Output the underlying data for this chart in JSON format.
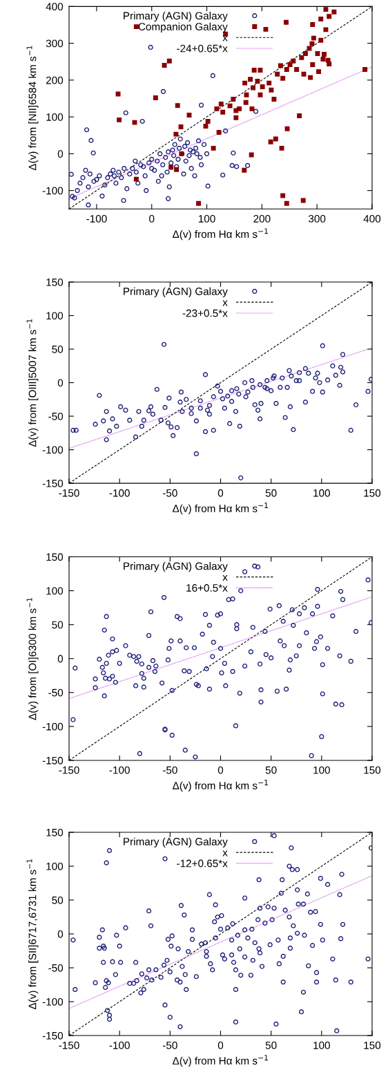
{
  "chart_data": [
    {
      "type": "scatter",
      "xlabel": "Δ(v) from Hα km s$^{−1}$",
      "ylabel": "Δ(v) from [NII]6584 km s$^{−1}$",
      "xlim": [
        -150,
        400
      ],
      "ylim": [
        -150,
        400
      ],
      "xticks": [
        -100,
        0,
        100,
        200,
        300,
        400
      ],
      "yticks": [
        -100,
        0,
        100,
        200,
        300,
        400
      ],
      "legend": "top left",
      "grid": false,
      "series": [
        {
          "name": "Primary (AGN) Galaxy",
          "type": "scatter",
          "marker": "circle",
          "color": "#1f1f7a",
          "x": [
            -146,
            -144,
            -140,
            -135,
            -130,
            -125,
            -120,
            -118,
            -115,
            -115,
            -112,
            -110,
            -106,
            -105,
            -100,
            -95,
            -90,
            -85,
            -80,
            -75,
            -70,
            -68,
            -65,
            -60,
            -55,
            -51,
            -50,
            -47,
            -45,
            -40,
            -35,
            -30,
            -28,
            -25,
            -20,
            -17,
            -15,
            -12,
            -10,
            -5,
            -2,
            0,
            0,
            5,
            10,
            12,
            15,
            18,
            20,
            21,
            25,
            28,
            30,
            30,
            32,
            35,
            38,
            40,
            42,
            45,
            48,
            50,
            52,
            55,
            58,
            60,
            62,
            65,
            68,
            70,
            72,
            75,
            78,
            80,
            82,
            85,
            88,
            90,
            90,
            95,
            100,
            102,
            111,
            129,
            134,
            146,
            148,
            154,
            174,
            189
          ],
          "values": [
            -56,
            -116,
            -120,
            -100,
            -80,
            -65,
            -45,
            65,
            -139,
            -90,
            -55,
            36,
            2,
            -75,
            -70,
            -60,
            -115,
            -85,
            -65,
            -55,
            -45,
            -60,
            -80,
            -50,
            -65,
            -127,
            -40,
            111,
            -95,
            -55,
            -40,
            -20,
            -50,
            -80,
            -30,
            88,
            -35,
            -60,
            -100,
            -25,
            289,
            -40,
            -15,
            -45,
            -20,
            -75,
            0,
            -60,
            -30,
            169,
            -10,
            -50,
            5,
            -122,
            -90,
            -25,
            10,
            -5,
            25,
            -35,
            -15,
            15,
            40,
            0,
            -55,
            20,
            -20,
            30,
            -5,
            10,
            -40,
            5,
            -60,
            15,
            0,
            35,
            -10,
            -30,
            132,
            25,
            0,
            -88,
            212,
            -58,
            62,
            -32,
            2,
            -35,
            -32,
            115
          ]
        },
        {
          "name": "Companion Galaxy",
          "type": "scatter",
          "marker": "square",
          "color": "#8b0000",
          "x": [
            -61,
            -59,
            -31,
            -28,
            -28,
            7,
            23,
            32,
            35,
            44,
            45,
            47,
            53,
            54,
            68,
            85,
            98,
            102,
            112,
            118,
            122,
            126,
            129,
            134,
            142,
            148,
            153,
            153,
            159,
            168,
            169,
            171,
            172,
            179,
            181,
            182,
            184,
            186,
            192,
            197,
            197,
            201,
            207,
            213,
            216,
            217,
            222,
            225,
            228,
            234,
            236,
            238,
            238,
            244,
            245,
            245,
            246,
            251,
            257,
            263,
            268,
            272,
            275,
            276,
            279,
            286,
            288,
            291,
            292,
            292,
            294,
            301,
            303,
            307,
            307,
            311,
            313,
            316,
            316,
            320,
            322,
            322,
            331,
            387
          ],
          "values": [
            162,
            92,
            85,
            345,
            -69,
            152,
            240,
            252,
            -37,
            53,
            -43,
            131,
            73,
            0,
            105,
            -135,
            75,
            88,
            15,
            122,
            58,
            135,
            113,
            325,
            130,
            148,
            117,
            98,
            122,
            -45,
            192,
            139,
            160,
            202,
            -3,
            122,
            179,
            227,
            197,
            160,
            227,
            182,
            338,
            192,
            32,
            173,
            148,
            40,
            216,
            239,
            15,
            205,
            -114,
            357,
            229,
            -135,
            68,
            242,
            252,
            229,
            103,
            261,
            -127,
            216,
            272,
            286,
            207,
            299,
            242,
            351,
            314,
            272,
            223,
            308,
            366,
            257,
            270,
            337,
            392,
            254,
            244,
            373,
            385,
            229
          ]
        },
        {
          "name": "x",
          "type": "line",
          "line_style": "dashed",
          "marker": "none",
          "color": "#000000",
          "x": [
            -150,
            400
          ],
          "values": [
            -150,
            400
          ]
        },
        {
          "name": "-24+0.65*x",
          "type": "line",
          "line_style": "dotted",
          "marker": "none",
          "color": "#cc44ee",
          "x": [
            -150,
            400
          ],
          "values": [
            -122,
            236
          ]
        }
      ]
    },
    {
      "type": "scatter",
      "xlabel": "Δ(v) from Hα km s$^{−1}$",
      "ylabel": "Δ(v) from [OIII]5007 km s$^{−1}$",
      "xlim": [
        -150,
        150
      ],
      "ylim": [
        -150,
        150
      ],
      "xticks": [
        -150,
        -100,
        -50,
        0,
        50,
        100,
        150
      ],
      "yticks": [
        -150,
        -100,
        -50,
        0,
        50,
        100,
        150
      ],
      "legend": "top left",
      "grid": false,
      "series": [
        {
          "name": "Primary (AGN) Galaxy",
          "type": "scatter",
          "marker": "circle",
          "color": "#1f1f7a",
          "x": [
            -146,
            -143,
            -124,
            -120,
            -116,
            -113,
            -113,
            -110,
            -107,
            -103,
            -99,
            -94,
            -90,
            -84,
            -81,
            -78,
            -76,
            -71,
            -69,
            -67,
            -63,
            -59,
            -56,
            -55,
            -52,
            -51,
            -49,
            -47,
            -43,
            -40,
            -39,
            -38,
            -34,
            -29,
            -29,
            -24,
            -24,
            -20,
            -20,
            -15,
            -15,
            -13,
            -11,
            -11,
            -7,
            -7,
            -3,
            0,
            2,
            4,
            7,
            9,
            11,
            11,
            15,
            16,
            18,
            19,
            20,
            24,
            25,
            27,
            31,
            32,
            34,
            37,
            39,
            39,
            40,
            44,
            46,
            46,
            50,
            52,
            53,
            55,
            59,
            61,
            64,
            66,
            68,
            69,
            70,
            72,
            75,
            78,
            78,
            84,
            84,
            87,
            91,
            94,
            96,
            98,
            101,
            101,
            106,
            111,
            114,
            118,
            119,
            121,
            121,
            129,
            134,
            146,
            149
          ],
          "values": [
            -71,
            -71,
            -62,
            -19,
            -57,
            -43,
            -85,
            -72,
            -54,
            -65,
            -36,
            -41,
            -56,
            -81,
            -43,
            -65,
            -56,
            -42,
            -36,
            -47,
            -10,
            -56,
            57,
            -37,
            -60,
            -23,
            -66,
            -79,
            -67,
            -29,
            -14,
            -43,
            -25,
            -46,
            -38,
            -106,
            -57,
            -27,
            -38,
            12,
            -73,
            -41,
            -47,
            -34,
            -71,
            -21,
            -5,
            -13,
            -24,
            -38,
            -20,
            -61,
            -12,
            -28,
            -43,
            -9,
            -17,
            -65,
            -142,
            0,
            -21,
            -14,
            3,
            -7,
            -33,
            -41,
            -54,
            -3,
            -31,
            -7,
            3,
            -9,
            -12,
            7,
            10,
            -31,
            -7,
            7,
            -52,
            -7,
            18,
            -36,
            10,
            -70,
            3,
            15,
            3,
            21,
            -29,
            14,
            -13,
            7,
            14,
            0,
            55,
            -14,
            4,
            25,
            11,
            -4,
            23,
            42,
            16,
            -71,
            -33,
            -13,
            5
          ]
        },
        {
          "name": "x",
          "type": "line",
          "line_style": "dashed",
          "marker": "none",
          "color": "#000000",
          "x": [
            -150,
            150
          ],
          "values": [
            -150,
            150
          ]
        },
        {
          "name": "-23+0.5*x",
          "type": "line",
          "line_style": "dotted",
          "marker": "none",
          "color": "#cc44ee",
          "x": [
            -150,
            150
          ],
          "values": [
            -98,
            52
          ]
        }
      ]
    },
    {
      "type": "scatter",
      "xlabel": "Δ(v) from Hα km s$^{−1}$",
      "ylabel": "Δ(v) from [OI]6300 km s$^{−1}$",
      "xlim": [
        -150,
        150
      ],
      "ylim": [
        -150,
        150
      ],
      "xticks": [
        -150,
        -100,
        -50,
        0,
        50,
        100,
        150
      ],
      "yticks": [
        -150,
        -100,
        -50,
        0,
        50,
        100,
        150
      ],
      "legend": "top left",
      "grid": false,
      "series": [
        {
          "name": "Primary (AGN) Galaxy",
          "type": "scatter",
          "marker": "circle",
          "color": "#1f1f7a",
          "x": [
            -146,
            -144,
            -124,
            -124,
            -120,
            -117,
            -116,
            -115,
            -115,
            -114,
            -113,
            -113,
            -111,
            -110,
            -107,
            -107,
            -107,
            -104,
            -103,
            -100,
            -94,
            -90,
            -86,
            -84,
            -83,
            -81,
            -80,
            -78,
            -78,
            -76,
            -76,
            -71,
            -71,
            -69,
            -67,
            -65,
            -64,
            -58,
            -56,
            -55,
            -55,
            -52,
            -51,
            -49,
            -48,
            -48,
            -43,
            -40,
            -40,
            -36,
            -35,
            -34,
            -31,
            -26,
            -25,
            -24,
            -22,
            -18,
            -15,
            -14,
            -11,
            -11,
            -8,
            -7,
            -3,
            0,
            0,
            1,
            4,
            5,
            8,
            12,
            12,
            15,
            16,
            16,
            19,
            20,
            24,
            24,
            30,
            32,
            37,
            39,
            40,
            40,
            44,
            45,
            49,
            50,
            56,
            58,
            59,
            62,
            63,
            65,
            68,
            69,
            71,
            72,
            75,
            78,
            78,
            83,
            85,
            90,
            91,
            93,
            96,
            96,
            95,
            99,
            100,
            101,
            101,
            106,
            111,
            114,
            118,
            119,
            120,
            121,
            129,
            134,
            146,
            149
          ],
          "values": [
            -90,
            -14,
            -30,
            -43,
            -1,
            -13,
            -21,
            42,
            -55,
            -29,
            -7,
            62,
            5,
            -30,
            -26,
            10,
            29,
            -35,
            12,
            -7,
            19,
            5,
            3,
            -40,
            -4,
            3,
            -140,
            -8,
            -22,
            -42,
            -29,
            34,
            -13,
            69,
            -3,
            -19,
            -11,
            -36,
            90,
            -104,
            -105,
            -2,
            15,
            26,
            -47,
            -113,
            62,
            59,
            26,
            -18,
            -135,
            16,
            -19,
            16,
            -145,
            -38,
            -40,
            36,
            65,
            -15,
            49,
            -45,
            3,
            24,
            64,
            66,
            15,
            -21,
            -7,
            -40,
            87,
            88,
            -19,
            -99,
            50,
            44,
            -51,
            100,
            128,
            -11,
            10,
            46,
            135,
            -8,
            -64,
            -46,
            40,
            6,
            73,
            1,
            -48,
            78,
            26,
            55,
            19,
            -45,
            -17,
            -2,
            72,
            49,
            4,
            66,
            19,
            75,
            38,
            -143,
            66,
            15,
            102,
            77,
            25,
            32,
            -115,
            -9,
            -52,
            15,
            63,
            -67,
            4,
            99,
            -68,
            87,
            -4,
            40,
            116,
            53
          ]
        },
        {
          "name": "x",
          "type": "line",
          "line_style": "dashed",
          "marker": "none",
          "color": "#000000",
          "x": [
            -150,
            150
          ],
          "values": [
            -150,
            150
          ]
        },
        {
          "name": "16+0.5*x",
          "type": "line",
          "line_style": "dotted",
          "marker": "none",
          "color": "#cc44ee",
          "x": [
            -150,
            150
          ],
          "values": [
            -59,
            91
          ]
        }
      ]
    },
    {
      "type": "scatter",
      "xlabel": "Δ(v) from Hα km s$^{−1}$",
      "ylabel": "Δ(v) from [SII]6717,6731 km s$^{−1}$",
      "xlim": [
        -150,
        150
      ],
      "ylim": [
        -150,
        150
      ],
      "xticks": [
        -150,
        -100,
        -50,
        0,
        50,
        100,
        150
      ],
      "yticks": [
        -150,
        -100,
        -50,
        0,
        50,
        100,
        150
      ],
      "legend": "top left",
      "grid": false,
      "series": [
        {
          "name": "Primary (AGN) Galaxy",
          "type": "scatter",
          "marker": "circle",
          "color": "#1f1f7a",
          "x": [
            -146,
            -144,
            -124,
            -120,
            -120,
            -117,
            -116,
            -116,
            -115,
            -114,
            -113,
            -113,
            -112,
            -111,
            -110,
            -110,
            -110,
            -107,
            -104,
            -103,
            -100,
            -99,
            -94,
            -90,
            -86,
            -84,
            -83,
            -79,
            -78,
            -76,
            -73,
            -71,
            -71,
            -69,
            -68,
            -64,
            -59,
            -56,
            -55,
            -55,
            -53,
            -52,
            -50,
            -50,
            -49,
            -48,
            -43,
            -42,
            -40,
            -40,
            -39,
            -38,
            -36,
            -35,
            -34,
            -32,
            -28,
            -28,
            -24,
            -19,
            -15,
            -14,
            -14,
            -11,
            -10,
            -8,
            -6,
            -5,
            -5,
            -3,
            0,
            1,
            2,
            4,
            7,
            11,
            11,
            12,
            13,
            15,
            15,
            15,
            17,
            19,
            20,
            24,
            24,
            24,
            27,
            30,
            31,
            32,
            34,
            37,
            38,
            38,
            39,
            39,
            41,
            44,
            47,
            49,
            51,
            53,
            53,
            55,
            57,
            58,
            60,
            61,
            62,
            62,
            64,
            68,
            68,
            69,
            69,
            70,
            71,
            72,
            76,
            76,
            77,
            76,
            80,
            82,
            82,
            83,
            86,
            87,
            89,
            91,
            94,
            95,
            95,
            99,
            99,
            101,
            106,
            111,
            114,
            115,
            118,
            119,
            120,
            121,
            129,
            146,
            149
          ],
          "values": [
            -9,
            -82,
            -72,
            -5,
            -21,
            6,
            -18,
            -42,
            -21,
            -79,
            105,
            -69,
            -113,
            -72,
            123,
            -120,
            -126,
            -41,
            -60,
            -2,
            -18,
            -42,
            9,
            -73,
            -73,
            -42,
            -69,
            -87,
            -59,
            -82,
            -65,
            34,
            -53,
            12,
            -68,
            -53,
            -64,
            -46,
            111,
            -105,
            -39,
            -8,
            -56,
            -123,
            -18,
            -3,
            -68,
            -22,
            -71,
            -137,
            42,
            -48,
            28,
            -60,
            -82,
            -26,
            -8,
            6,
            -63,
            -15,
            -13,
            -33,
            -26,
            58,
            -44,
            -53,
            18,
            43,
            -6,
            25,
            7,
            27,
            -31,
            -37,
            9,
            -31,
            -9,
            15,
            -42,
            -82,
            -53,
            -130,
            -2,
            -22,
            -61,
            53,
            -34,
            6,
            -6,
            -61,
            7,
            -39,
            -13,
            21,
            -22,
            80,
            -28,
            38,
            -48,
            16,
            40,
            -16,
            21,
            145,
            38,
            -133,
            -9,
            -44,
            60,
            80,
            -33,
            -71,
            35,
            100,
            25,
            -6,
            -21,
            127,
            95,
            12,
            95,
            65,
            44,
            1,
            -115,
            -86,
            44,
            -2,
            59,
            -47,
            32,
            -17,
            33,
            -57,
            -71,
            82,
            14,
            -9,
            73,
            -37,
            -68,
            -143,
            58,
            -7,
            88,
            14,
            -71,
            -37,
            127
          ]
        },
        {
          "name": "x",
          "type": "line",
          "line_style": "dashed",
          "marker": "none",
          "color": "#000000",
          "x": [
            -150,
            150
          ],
          "values": [
            -150,
            150
          ]
        },
        {
          "name": "-12+0.65*x",
          "type": "line",
          "line_style": "dotted",
          "marker": "none",
          "color": "#cc44ee",
          "x": [
            -150,
            150
          ],
          "values": [
            -110,
            86
          ]
        }
      ]
    }
  ]
}
